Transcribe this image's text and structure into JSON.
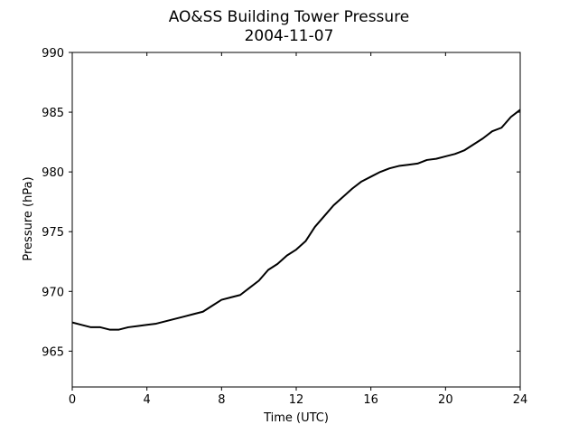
{
  "chart_data": {
    "type": "line",
    "title": "AO&SS Building Tower Pressure",
    "subtitle": "2004-11-07",
    "xlabel": "Time (UTC)",
    "ylabel": "Pressure (hPa)",
    "xlim": [
      0,
      24
    ],
    "ylim": [
      962,
      990
    ],
    "xticks": [
      0,
      4,
      8,
      12,
      16,
      20,
      24
    ],
    "yticks": [
      965,
      970,
      975,
      980,
      985,
      990
    ],
    "grid": false,
    "legend": "none",
    "series": [
      {
        "color": "#000000",
        "x": [
          0,
          0.5,
          1,
          1.5,
          2,
          2.5,
          3,
          3.5,
          4,
          4.5,
          5,
          5.5,
          6,
          6.5,
          7,
          7.5,
          8,
          8.5,
          9,
          9.5,
          10,
          10.5,
          11,
          11.5,
          12,
          12.5,
          13,
          13.5,
          14,
          14.5,
          15,
          15.5,
          16,
          16.5,
          17,
          17.5,
          18,
          18.5,
          19,
          19.5,
          20,
          20.5,
          21,
          21.5,
          22,
          22.5,
          23,
          23.5,
          24
        ],
        "y": [
          967.4,
          967.2,
          967.0,
          967.0,
          966.8,
          966.8,
          967.0,
          967.1,
          967.2,
          967.3,
          967.5,
          967.7,
          967.9,
          968.1,
          968.3,
          968.8,
          969.3,
          969.5,
          969.7,
          970.3,
          970.9,
          971.8,
          972.3,
          973.0,
          973.5,
          974.2,
          975.4,
          976.3,
          977.2,
          977.9,
          978.6,
          979.2,
          979.6,
          980.0,
          980.3,
          980.5,
          980.6,
          980.7,
          981.0,
          981.1,
          981.3,
          981.5,
          981.8,
          982.3,
          982.8,
          983.4,
          983.7,
          984.6,
          985.2
        ]
      }
    ]
  }
}
